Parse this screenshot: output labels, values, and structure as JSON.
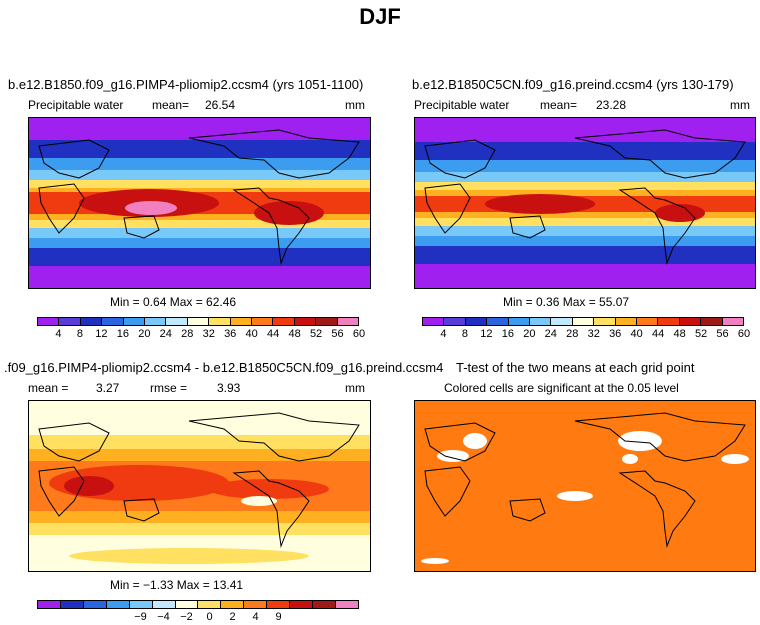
{
  "page_title": "DJF",
  "colors": {
    "precip_scale": [
      "#a020f0",
      "#5a3cd8",
      "#2030c0",
      "#2a64e0",
      "#3c9cf0",
      "#78c8f8",
      "#c0e8ff",
      "#ffffe0",
      "#ffe060",
      "#ffb020",
      "#ff7a1a",
      "#f03a10",
      "#c81010",
      "#a01818",
      "#f080c0"
    ],
    "diff_scale": [
      "#a020f0",
      "#2030c0",
      "#2a64e0",
      "#3c9cf0",
      "#78c8f8",
      "#c0e8ff",
      "#ffffe0",
      "#ffe060",
      "#ffb020",
      "#ff7a1a",
      "#f03a10",
      "#c81010",
      "#a01818",
      "#f080c0"
    ],
    "ttest_fill": "#ff7a10",
    "land_outline": "#000000"
  },
  "panels": {
    "top_left": {
      "title": "b.e12.B1850.f09_g16.PIMP4-pliomip2.ccsm4 (yrs 1051-1100)",
      "variable": "Precipitable water",
      "mean_label": "mean=",
      "mean_value": "26.54",
      "units": "mm",
      "stats": "Min =    0.64  Max =   62.46",
      "colorbar_ticks": [
        "4",
        "8",
        "12",
        "16",
        "20",
        "24",
        "28",
        "32",
        "36",
        "40",
        "44",
        "48",
        "52",
        "56",
        "60"
      ]
    },
    "top_right": {
      "title": "b.e12.B1850C5CN.f09_g16.preind.ccsm4 (yrs 130-179)",
      "variable": "Precipitable water",
      "mean_label": "mean=",
      "mean_value": "23.28",
      "units": "mm",
      "stats": "Min =    0.36  Max =   55.07",
      "colorbar_ticks": [
        "4",
        "8",
        "12",
        "16",
        "20",
        "24",
        "28",
        "32",
        "36",
        "40",
        "44",
        "48",
        "52",
        "56",
        "60"
      ]
    },
    "bottom_left": {
      "title": ".f09_g16.PIMP4-pliomip2.ccsm4 - b.e12.B1850C5CN.f09_g16.preind.ccsm4",
      "mean_label": "mean =",
      "mean_value": "3.27",
      "rmse_label": "rmse =",
      "rmse_value": "3.93",
      "units": "mm",
      "stats": "Min =  −1.33  Max =   13.41",
      "colorbar_ticks": [
        "−9",
        "−4",
        "−2",
        "0",
        "2",
        "4",
        "9"
      ]
    },
    "bottom_right": {
      "title": "T-test of the two means at each grid point",
      "subtitle": "Colored cells are significant at the 0.05 level"
    }
  },
  "chart_data": [
    {
      "type": "heatmap",
      "title": "b.e12.B1850.f09_g16.PIMP4-pliomip2.ccsm4 (yrs 1051-1100)",
      "variable": "Precipitable water",
      "units": "mm",
      "mean": 26.54,
      "min": 0.64,
      "max": 62.46,
      "levels": [
        4,
        8,
        12,
        16,
        20,
        24,
        28,
        32,
        36,
        40,
        44,
        48,
        52,
        56,
        60
      ]
    },
    {
      "type": "heatmap",
      "title": "b.e12.B1850C5CN.f09_g16.preind.ccsm4 (yrs 130-179)",
      "variable": "Precipitable water",
      "units": "mm",
      "mean": 23.28,
      "min": 0.36,
      "max": 55.07,
      "levels": [
        4,
        8,
        12,
        16,
        20,
        24,
        28,
        32,
        36,
        40,
        44,
        48,
        52,
        56,
        60
      ]
    },
    {
      "type": "heatmap",
      "title": ".f09_g16.PIMP4-pliomip2.ccsm4 - b.e12.B1850C5CN.f09_g16.preind.ccsm4",
      "units": "mm",
      "mean": 3.27,
      "rmse": 3.93,
      "min": -1.33,
      "max": 13.41,
      "colorbar_labels": [
        -9,
        -4,
        -2,
        0,
        2,
        4,
        9
      ]
    },
    {
      "type": "heatmap",
      "title": "T-test of the two means at each grid point",
      "subtitle": "Colored cells are significant at the 0.05 level"
    }
  ]
}
